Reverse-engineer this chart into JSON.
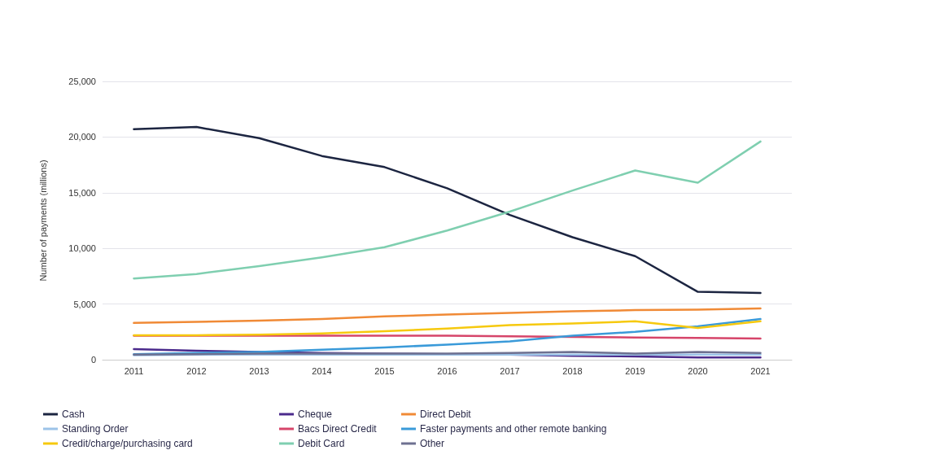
{
  "chart_data": {
    "type": "line",
    "ylabel": "Number of payments (millions)",
    "categories": [
      "2011",
      "2012",
      "2013",
      "2014",
      "2015",
      "2016",
      "2017",
      "2018",
      "2019",
      "2020",
      "2021"
    ],
    "ylim": [
      0,
      25000
    ],
    "yticks": [
      {
        "value": 0,
        "label": "0"
      },
      {
        "value": 5000,
        "label": "5,000"
      },
      {
        "value": 10000,
        "label": "10,000"
      },
      {
        "value": 15000,
        "label": "15,000"
      },
      {
        "value": 20000,
        "label": "20,000"
      },
      {
        "value": 25000,
        "label": "25,000"
      }
    ],
    "grid": "y",
    "legend": "bottom",
    "marker": "none",
    "line_style": "solid",
    "series": [
      {
        "name": "Cash",
        "color": "#1c2541",
        "values": [
          20700,
          20900,
          19900,
          18300,
          17300,
          15400,
          13000,
          11000,
          9300,
          6100,
          6000
        ]
      },
      {
        "name": "Cheque",
        "color": "#4b2a8c",
        "values": [
          950,
          800,
          700,
          600,
          550,
          500,
          450,
          350,
          300,
          200,
          200
        ]
      },
      {
        "name": "Direct Debit",
        "color": "#f08a36",
        "values": [
          3300,
          3400,
          3500,
          3650,
          3900,
          4050,
          4200,
          4350,
          4450,
          4500,
          4600
        ]
      },
      {
        "name": "Standing Order",
        "color": "#9cc3e8",
        "values": [
          400,
          450,
          450,
          450,
          450,
          450,
          450,
          450,
          450,
          450,
          450
        ]
      },
      {
        "name": "Bacs Direct Credit",
        "color": "#d6456a",
        "values": [
          2150,
          2150,
          2150,
          2150,
          2150,
          2150,
          2100,
          2050,
          2000,
          1950,
          1900
        ]
      },
      {
        "name": "Faster payments and other remote banking",
        "color": "#3a9ad9",
        "values": [
          500,
          600,
          700,
          900,
          1100,
          1350,
          1650,
          2150,
          2500,
          3000,
          3650
        ]
      },
      {
        "name": "Credit/charge/purchasing card",
        "color": "#f6c90e",
        "values": [
          2200,
          2200,
          2250,
          2350,
          2550,
          2800,
          3100,
          3250,
          3450,
          2850,
          3450
        ]
      },
      {
        "name": "Debit Card",
        "color": "#7fcfb0",
        "values": [
          7300,
          7700,
          8400,
          9200,
          10100,
          11600,
          13300,
          15200,
          17000,
          15900,
          19600
        ]
      },
      {
        "name": "Other",
        "color": "#6e7191",
        "values": [
          450,
          500,
          550,
          550,
          550,
          550,
          600,
          700,
          550,
          700,
          600
        ]
      }
    ]
  }
}
